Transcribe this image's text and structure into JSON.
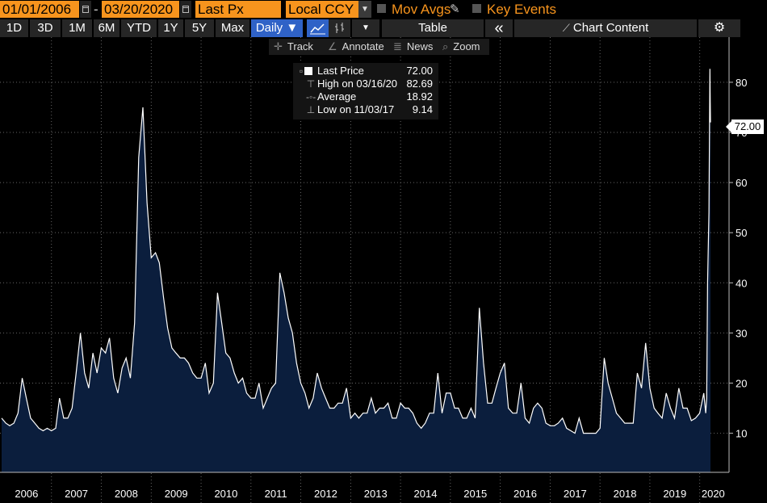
{
  "toolbar": {
    "start_date": "01/01/2006",
    "date_separator": "-",
    "end_date": "03/20/2020",
    "field": "Last Px",
    "currency": "Local CCY",
    "mov_avgs": "Mov Avgs",
    "key_events": "Key Events",
    "periods": [
      "1D",
      "3D",
      "1M",
      "6M",
      "YTD",
      "1Y",
      "5Y",
      "Max"
    ],
    "frequency": "Daily ▼",
    "table_label": "Table",
    "collapse_glyph": "«",
    "chart_content_label": "Chart Content",
    "colors": {
      "orange": "#f7941d",
      "selected_blue": "#2f62c7"
    }
  },
  "tools": {
    "track": "Track",
    "annotate": "Annotate",
    "news": "News",
    "zoom": "Zoom"
  },
  "legend": {
    "last_price_label": "Last Price",
    "last_price_value": "72.00",
    "high_label": "High on 03/16/20",
    "high_value": "82.69",
    "average_label": "Average",
    "average_value": "18.92",
    "low_label": "Low on 11/03/17",
    "low_value": "9.14"
  },
  "price_tag": "72.00",
  "chart_data": {
    "type": "area",
    "series": [
      {
        "name": "Last Price",
        "color": "#ffffff",
        "fill": "#0b1e3d",
        "points": [
          [
            "2006-01-01",
            13
          ],
          [
            "2006-02-01",
            12
          ],
          [
            "2006-03-01",
            11.5
          ],
          [
            "2006-04-01",
            12
          ],
          [
            "2006-05-01",
            14
          ],
          [
            "2006-06-01",
            21
          ],
          [
            "2006-07-01",
            17
          ],
          [
            "2006-08-01",
            13
          ],
          [
            "2006-09-01",
            12
          ],
          [
            "2006-10-01",
            11
          ],
          [
            "2006-11-01",
            10.5
          ],
          [
            "2006-12-01",
            11
          ],
          [
            "2007-01-01",
            10.5
          ],
          [
            "2007-02-01",
            11
          ],
          [
            "2007-03-01",
            17
          ],
          [
            "2007-04-01",
            13
          ],
          [
            "2007-05-01",
            13
          ],
          [
            "2007-06-01",
            15
          ],
          [
            "2007-07-01",
            22
          ],
          [
            "2007-08-01",
            30
          ],
          [
            "2007-09-01",
            22
          ],
          [
            "2007-10-01",
            19
          ],
          [
            "2007-11-01",
            26
          ],
          [
            "2007-12-01",
            22
          ],
          [
            "2008-01-01",
            27
          ],
          [
            "2008-02-01",
            26
          ],
          [
            "2008-03-01",
            29
          ],
          [
            "2008-04-01",
            21
          ],
          [
            "2008-05-01",
            18
          ],
          [
            "2008-06-01",
            23
          ],
          [
            "2008-07-01",
            25
          ],
          [
            "2008-08-01",
            21
          ],
          [
            "2008-09-01",
            32
          ],
          [
            "2008-10-01",
            65
          ],
          [
            "2008-11-01",
            75
          ],
          [
            "2008-12-01",
            56
          ],
          [
            "2009-01-01",
            45
          ],
          [
            "2009-02-01",
            46
          ],
          [
            "2009-03-01",
            44
          ],
          [
            "2009-04-01",
            37
          ],
          [
            "2009-05-01",
            31
          ],
          [
            "2009-06-01",
            27
          ],
          [
            "2009-07-01",
            26
          ],
          [
            "2009-08-01",
            25
          ],
          [
            "2009-09-01",
            25
          ],
          [
            "2009-10-01",
            24
          ],
          [
            "2009-11-01",
            22
          ],
          [
            "2009-12-01",
            21
          ],
          [
            "2010-01-01",
            21
          ],
          [
            "2010-02-01",
            24
          ],
          [
            "2010-03-01",
            18
          ],
          [
            "2010-04-01",
            20
          ],
          [
            "2010-05-01",
            38
          ],
          [
            "2010-06-01",
            32
          ],
          [
            "2010-07-01",
            26
          ],
          [
            "2010-08-01",
            25
          ],
          [
            "2010-09-01",
            22
          ],
          [
            "2010-10-01",
            20
          ],
          [
            "2010-11-01",
            21
          ],
          [
            "2010-12-01",
            18
          ],
          [
            "2011-01-01",
            17
          ],
          [
            "2011-02-01",
            17
          ],
          [
            "2011-03-01",
            20
          ],
          [
            "2011-04-01",
            15
          ],
          [
            "2011-05-01",
            17
          ],
          [
            "2011-06-01",
            19
          ],
          [
            "2011-07-01",
            20
          ],
          [
            "2011-08-01",
            42
          ],
          [
            "2011-09-01",
            38
          ],
          [
            "2011-10-01",
            33
          ],
          [
            "2011-11-01",
            30
          ],
          [
            "2011-12-01",
            24
          ],
          [
            "2012-01-01",
            20
          ],
          [
            "2012-02-01",
            18
          ],
          [
            "2012-03-01",
            15
          ],
          [
            "2012-04-01",
            17
          ],
          [
            "2012-05-01",
            22
          ],
          [
            "2012-06-01",
            19
          ],
          [
            "2012-07-01",
            17
          ],
          [
            "2012-08-01",
            15
          ],
          [
            "2012-09-01",
            15
          ],
          [
            "2012-10-01",
            16
          ],
          [
            "2012-11-01",
            16
          ],
          [
            "2012-12-01",
            19
          ],
          [
            "2013-01-01",
            13
          ],
          [
            "2013-02-01",
            14
          ],
          [
            "2013-03-01",
            13
          ],
          [
            "2013-04-01",
            14
          ],
          [
            "2013-05-01",
            14
          ],
          [
            "2013-06-01",
            17
          ],
          [
            "2013-07-01",
            14
          ],
          [
            "2013-08-01",
            15
          ],
          [
            "2013-09-01",
            15
          ],
          [
            "2013-10-01",
            16
          ],
          [
            "2013-11-01",
            13
          ],
          [
            "2013-12-01",
            13
          ],
          [
            "2014-01-01",
            16
          ],
          [
            "2014-02-01",
            15
          ],
          [
            "2014-03-01",
            15
          ],
          [
            "2014-04-01",
            14
          ],
          [
            "2014-05-01",
            12
          ],
          [
            "2014-06-01",
            11
          ],
          [
            "2014-07-01",
            12
          ],
          [
            "2014-08-01",
            14
          ],
          [
            "2014-09-01",
            14
          ],
          [
            "2014-10-01",
            22
          ],
          [
            "2014-11-01",
            14
          ],
          [
            "2014-12-01",
            18
          ],
          [
            "2015-01-01",
            18
          ],
          [
            "2015-02-01",
            15
          ],
          [
            "2015-03-01",
            15
          ],
          [
            "2015-04-01",
            13
          ],
          [
            "2015-05-01",
            13
          ],
          [
            "2015-06-01",
            15
          ],
          [
            "2015-07-01",
            13
          ],
          [
            "2015-08-01",
            35
          ],
          [
            "2015-09-01",
            24
          ],
          [
            "2015-10-01",
            16
          ],
          [
            "2015-11-01",
            16
          ],
          [
            "2015-12-01",
            19
          ],
          [
            "2016-01-01",
            22
          ],
          [
            "2016-02-01",
            24
          ],
          [
            "2016-03-01",
            15
          ],
          [
            "2016-04-01",
            14
          ],
          [
            "2016-05-01",
            14
          ],
          [
            "2016-06-01",
            20
          ],
          [
            "2016-07-01",
            13
          ],
          [
            "2016-08-01",
            12
          ],
          [
            "2016-09-01",
            15
          ],
          [
            "2016-10-01",
            16
          ],
          [
            "2016-11-01",
            15
          ],
          [
            "2016-12-01",
            12
          ],
          [
            "2017-01-01",
            11.5
          ],
          [
            "2017-02-01",
            11.5
          ],
          [
            "2017-03-01",
            12
          ],
          [
            "2017-04-01",
            13
          ],
          [
            "2017-05-01",
            11
          ],
          [
            "2017-06-01",
            10.5
          ],
          [
            "2017-07-01",
            10
          ],
          [
            "2017-08-01",
            13
          ],
          [
            "2017-09-01",
            10
          ],
          [
            "2017-10-01",
            10
          ],
          [
            "2017-11-01",
            10
          ],
          [
            "2017-12-01",
            10
          ],
          [
            "2018-01-01",
            11
          ],
          [
            "2018-02-01",
            25
          ],
          [
            "2018-03-01",
            20
          ],
          [
            "2018-04-01",
            17
          ],
          [
            "2018-05-01",
            14
          ],
          [
            "2018-06-01",
            13
          ],
          [
            "2018-07-01",
            12
          ],
          [
            "2018-08-01",
            12
          ],
          [
            "2018-09-01",
            12
          ],
          [
            "2018-10-01",
            22
          ],
          [
            "2018-11-01",
            19
          ],
          [
            "2018-12-01",
            28
          ],
          [
            "2019-01-01",
            19
          ],
          [
            "2019-02-01",
            15
          ],
          [
            "2019-03-01",
            14
          ],
          [
            "2019-04-01",
            13
          ],
          [
            "2019-05-01",
            18
          ],
          [
            "2019-06-01",
            15
          ],
          [
            "2019-07-01",
            13
          ],
          [
            "2019-08-01",
            19
          ],
          [
            "2019-09-01",
            15
          ],
          [
            "2019-10-01",
            15
          ],
          [
            "2019-11-01",
            12.5
          ],
          [
            "2019-12-01",
            13
          ],
          [
            "2020-01-01",
            14
          ],
          [
            "2020-01-31",
            18
          ],
          [
            "2020-02-14",
            14
          ],
          [
            "2020-02-21",
            17
          ],
          [
            "2020-02-28",
            40
          ],
          [
            "2020-03-09",
            54
          ],
          [
            "2020-03-16",
            82.69
          ],
          [
            "2020-03-18",
            76
          ],
          [
            "2020-03-20",
            72
          ]
        ]
      }
    ],
    "x_range": [
      "2006-01-01",
      "2020-03-20"
    ],
    "x_ticks": [
      "2006",
      "2007",
      "2008",
      "2009",
      "2010",
      "2011",
      "2012",
      "2013",
      "2014",
      "2015",
      "2016",
      "2017",
      "2018",
      "2019",
      "2020"
    ],
    "y_ticks": [
      10,
      20,
      30,
      40,
      50,
      60,
      70,
      80
    ],
    "ylim": [
      2.2,
      89
    ],
    "y_axis_side": "right",
    "grid": true
  }
}
